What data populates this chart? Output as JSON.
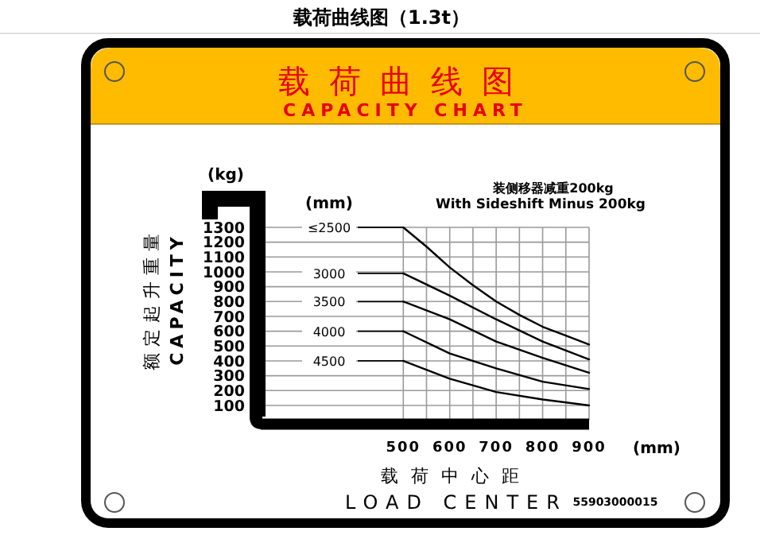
{
  "chart_data": {
    "type": "line",
    "title": "载荷曲线图（1.3t）",
    "subtitle": "载荷曲线图 CAPACITY CHART",
    "xlabel": "载荷中心距 LOAD CENTER",
    "ylabel": "额定起升重量 CAPACITY",
    "legend_title": "(mm)",
    "annotations": [
      "(kg)",
      "(mm)",
      "装侧移器减重200kg",
      "With Sideshift Minus 200kg",
      "55903000015"
    ],
    "series": [
      {
        "name": "≤2500",
        "color": "#000000",
        "x": [
          500,
          550,
          600,
          650,
          700,
          750,
          800,
          850,
          900
        ],
        "values": [
          1300,
          1170,
          1030,
          910,
          800,
          710,
          630,
          570,
          510
        ]
      },
      {
        "name": "3000",
        "color": "#000000",
        "x": [
          500,
          600,
          700,
          800,
          900
        ],
        "values": [
          990,
          840,
          680,
          530,
          410
        ]
      },
      {
        "name": "3500",
        "color": "#000000",
        "x": [
          500,
          600,
          700,
          800,
          900
        ],
        "values": [
          800,
          680,
          530,
          420,
          320
        ]
      },
      {
        "name": "4000",
        "color": "#000000",
        "x": [
          500,
          600,
          700,
          800,
          900
        ],
        "values": [
          600,
          450,
          350,
          260,
          210
        ]
      },
      {
        "name": "4500",
        "color": "#000000",
        "x": [
          500,
          600,
          700,
          800,
          900
        ],
        "values": [
          400,
          280,
          190,
          140,
          100
        ]
      }
    ],
    "xlim": [
      200,
      900
    ],
    "ylim": [
      0,
      1300
    ],
    "xticks": [
      500,
      {
        "value": 550,
        "label": null
      },
      600,
      {
        "value": 650,
        "label": null
      },
      700,
      {
        "value": 750,
        "label": null
      },
      800,
      {
        "value": 850,
        "label": null
      },
      900
    ],
    "yticks": [
      100,
      200,
      300,
      400,
      500,
      600,
      700,
      800,
      900,
      1000,
      1100,
      1200,
      1300
    ],
    "grid": true,
    "legend": "left",
    "marker": "none"
  }
}
